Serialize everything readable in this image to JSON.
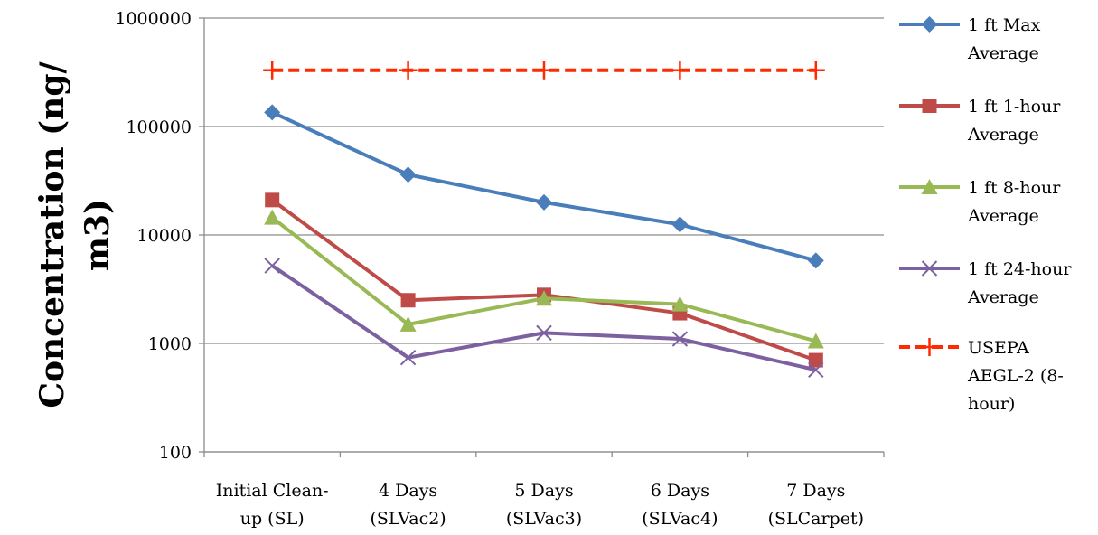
{
  "chart_data": {
    "type": "line",
    "yscale": "log",
    "ylim": [
      100,
      1000000
    ],
    "yticks": [
      "1000000",
      "100000",
      "10000",
      "1000",
      "100"
    ],
    "ylabel_lines": [
      "Concentration (ng/",
      "m3)"
    ],
    "xlabel": "",
    "categories": [
      [
        "Initial Clean-",
        "up (SL)"
      ],
      [
        "4 Days",
        "(SLVac2)"
      ],
      [
        "5 Days",
        "(SLVac3)"
      ],
      [
        "6 Days",
        "(SLVac4)"
      ],
      [
        "7 Days",
        "(SLCarpet)"
      ]
    ],
    "grid": "horizontal",
    "legend_position": "right",
    "series": [
      {
        "name_lines": [
          "1 ft Max",
          "Average"
        ],
        "color": "#4a7ebb",
        "marker": "diamond",
        "dash": false,
        "values": [
          135000,
          36000,
          20000,
          12500,
          5800
        ]
      },
      {
        "name_lines": [
          "1 ft 1-hour",
          "Average"
        ],
        "color": "#be4b48",
        "marker": "square",
        "dash": false,
        "values": [
          21000,
          2500,
          2800,
          1900,
          700
        ]
      },
      {
        "name_lines": [
          "1 ft 8-hour",
          "Average"
        ],
        "color": "#98b954",
        "marker": "triangle",
        "dash": false,
        "values": [
          14500,
          1500,
          2600,
          2300,
          1050
        ]
      },
      {
        "name_lines": [
          "1 ft 24-hour",
          "Average"
        ],
        "color": "#7d60a0",
        "marker": "x",
        "dash": false,
        "values": [
          5200,
          740,
          1250,
          1100,
          570
        ]
      },
      {
        "name_lines": [
          "USEPA",
          "AEGL-2 (8-",
          "hour)"
        ],
        "color": "#ff2a00",
        "marker": "plus",
        "dash": true,
        "values": [
          330000,
          330000,
          330000,
          330000,
          330000
        ]
      }
    ]
  }
}
